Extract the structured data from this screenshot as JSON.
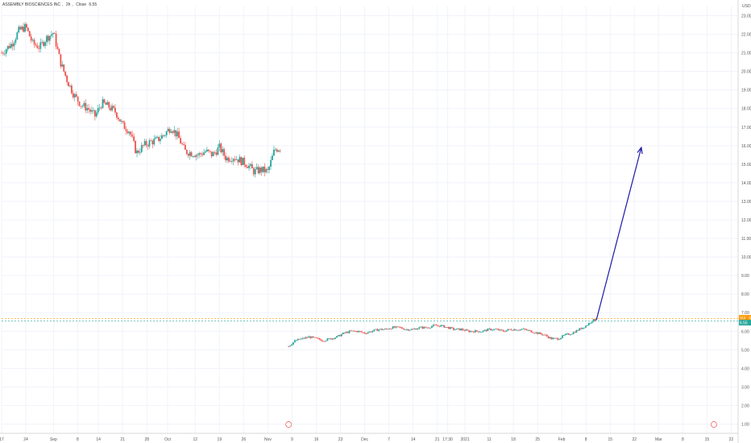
{
  "header": {
    "symbol": "ASSEMBLY BIOSCIENCES INC",
    "interval": "2h",
    "close_label": "Close",
    "close_value": "6.55"
  },
  "colors": {
    "up": "#26a69a",
    "down": "#ef5350",
    "arrow": "#1a1aa6",
    "grid": "#f0f3fa",
    "price_line": "#ff9800",
    "current_line": "#26a69a"
  },
  "price_tags": {
    "top_label": "Vol · 6.68",
    "bottom_label": "6.55"
  },
  "chart_data": {
    "type": "candlestick",
    "title": "",
    "y_unit_label": "USD",
    "ylim": [
      0.5,
      23.5
    ],
    "y_ticks": [
      1.0,
      2.0,
      3.0,
      4.0,
      5.0,
      6.0,
      7.0,
      8.0,
      9.0,
      10.0,
      11.0,
      12.0,
      13.0,
      14.0,
      15.0,
      16.0,
      17.0,
      18.0,
      19.0,
      20.0,
      21.0,
      22.0,
      23.0
    ],
    "y_tick_labels": [
      "1.00",
      "2.00",
      "3.00",
      "4.00",
      "5.00",
      "6.00",
      "7.00",
      "8.00",
      "9.00",
      "10.00",
      "11.00",
      "12.00",
      "13.00",
      "14.00",
      "15.00",
      "16.00",
      "17.00",
      "18.00",
      "19.00",
      "20.00",
      "21.00",
      "22.00",
      "23.00"
    ],
    "x_ticks": [
      "17",
      "24",
      "Sep",
      "8",
      "14",
      "21",
      "28",
      "Oct",
      "12",
      "19",
      "26",
      "Nov",
      "9",
      "16",
      "23",
      "Dec",
      "7",
      "14",
      "21",
      "17:30",
      "2021",
      "11",
      "18",
      "25",
      "Feb",
      "8",
      "15",
      "22",
      "Mar",
      "8",
      "15",
      "22"
    ],
    "x_positions": [
      0,
      7,
      15,
      22,
      28,
      35,
      42,
      48,
      56,
      63,
      70,
      77,
      84,
      91,
      98,
      105,
      112,
      119,
      126,
      129,
      134,
      141,
      148,
      155,
      162,
      169,
      176,
      183,
      190,
      197,
      204,
      211
    ],
    "x_range": [
      0,
      213
    ],
    "segments": [
      {
        "name": "",
        "x_start": 0,
        "x_end": 81,
        "points": [
          [
            0,
            21.0
          ],
          [
            3,
            21.5
          ],
          [
            5,
            22.2
          ],
          [
            7,
            22.4
          ],
          [
            9,
            21.5
          ],
          [
            11,
            21.3
          ],
          [
            13,
            21.8
          ],
          [
            15,
            22.1
          ],
          [
            17,
            20.5
          ],
          [
            19,
            19.5
          ],
          [
            21,
            18.7
          ],
          [
            23,
            18.2
          ],
          [
            25,
            18.0
          ],
          [
            27,
            17.6
          ],
          [
            29,
            18.3
          ],
          [
            31,
            18.1
          ],
          [
            33,
            17.8
          ],
          [
            35,
            17.1
          ],
          [
            37,
            16.8
          ],
          [
            39,
            15.6
          ],
          [
            41,
            16.0
          ],
          [
            43,
            16.2
          ],
          [
            45,
            16.3
          ],
          [
            47,
            16.6
          ],
          [
            49,
            17.0
          ],
          [
            51,
            16.5
          ],
          [
            53,
            15.7
          ],
          [
            55,
            15.6
          ],
          [
            57,
            15.5
          ],
          [
            59,
            15.7
          ],
          [
            61,
            15.5
          ],
          [
            63,
            15.9
          ],
          [
            65,
            15.3
          ],
          [
            67,
            15.4
          ],
          [
            69,
            15.2
          ],
          [
            71,
            15.0
          ],
          [
            73,
            14.6
          ],
          [
            75,
            14.7
          ],
          [
            77,
            14.6
          ],
          [
            79,
            15.8
          ],
          [
            81,
            15.9
          ]
        ]
      },
      {
        "name": "",
        "x_start": 83,
        "x_end": 172,
        "points": [
          [
            83,
            5.2
          ],
          [
            85,
            5.5
          ],
          [
            87,
            5.6
          ],
          [
            89,
            5.7
          ],
          [
            91,
            5.6
          ],
          [
            93,
            5.5
          ],
          [
            95,
            5.6
          ],
          [
            97,
            5.7
          ],
          [
            99,
            5.9
          ],
          [
            101,
            6.0
          ],
          [
            103,
            6.0
          ],
          [
            105,
            5.9
          ],
          [
            107,
            6.0
          ],
          [
            109,
            6.1
          ],
          [
            111,
            6.1
          ],
          [
            113,
            6.2
          ],
          [
            115,
            6.2
          ],
          [
            117,
            6.1
          ],
          [
            119,
            6.1
          ],
          [
            121,
            6.2
          ],
          [
            123,
            6.2
          ],
          [
            125,
            6.3
          ],
          [
            127,
            6.3
          ],
          [
            129,
            6.2
          ],
          [
            131,
            6.1
          ],
          [
            133,
            6.1
          ],
          [
            135,
            6.0
          ],
          [
            137,
            6.0
          ],
          [
            139,
            6.0
          ],
          [
            141,
            6.1
          ],
          [
            143,
            6.1
          ],
          [
            145,
            6.0
          ],
          [
            147,
            6.1
          ],
          [
            149,
            6.1
          ],
          [
            151,
            6.1
          ],
          [
            153,
            6.0
          ],
          [
            155,
            5.9
          ],
          [
            157,
            5.8
          ],
          [
            159,
            5.6
          ],
          [
            161,
            5.6
          ],
          [
            163,
            5.8
          ],
          [
            165,
            5.9
          ],
          [
            167,
            6.1
          ],
          [
            169,
            6.3
          ],
          [
            171,
            6.6
          ],
          [
            172,
            6.6
          ]
        ]
      }
    ],
    "projection_arrow": {
      "from": [
        172,
        6.6
      ],
      "to": [
        185,
        15.9
      ]
    },
    "price_line_value": 6.68,
    "last_close": 6.55,
    "grid": true,
    "legend": "none"
  }
}
